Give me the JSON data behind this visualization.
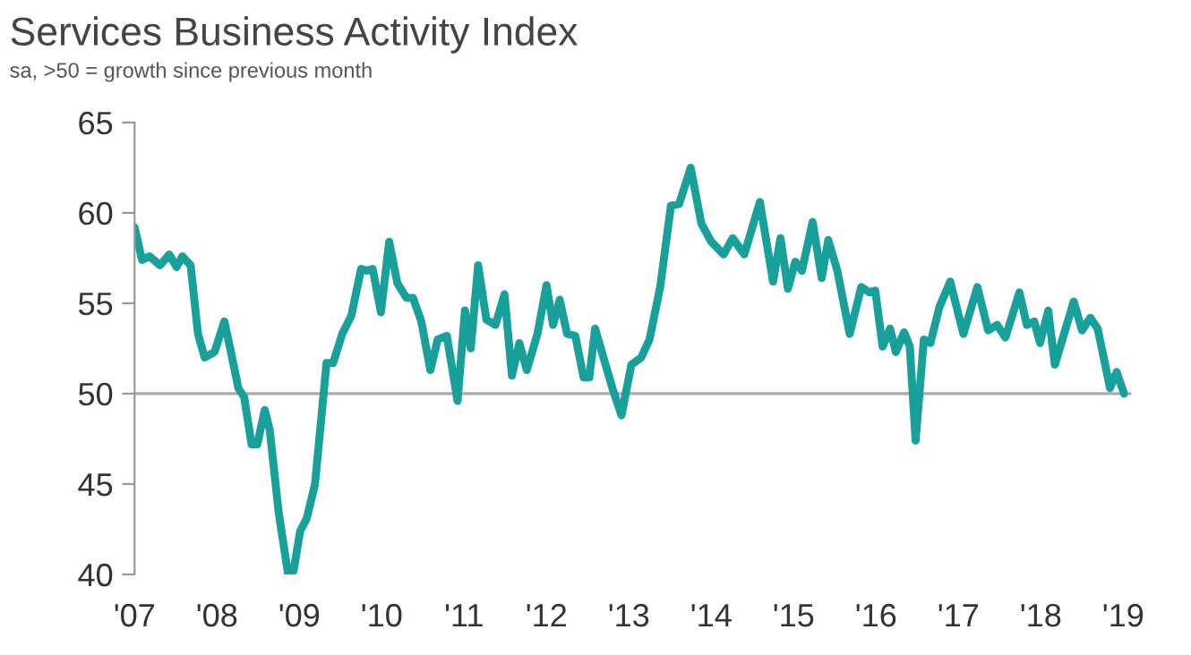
{
  "chart_data": {
    "type": "line",
    "title": "Services Business Activity Index",
    "subtitle": "sa, >50 = growth since previous month",
    "x": [
      2007.0,
      2007.09,
      2007.18,
      2007.31,
      2007.42,
      2007.51,
      2007.58,
      2007.68,
      2007.77,
      2007.85,
      2007.97,
      2008.09,
      2008.17,
      2008.26,
      2008.33,
      2008.42,
      2008.49,
      2008.58,
      2008.64,
      2008.75,
      2008.86,
      2008.93,
      2009.01,
      2009.09,
      2009.19,
      2009.33,
      2009.41,
      2009.52,
      2009.63,
      2009.75,
      2009.82,
      2009.89,
      2009.99,
      2010.09,
      2010.19,
      2010.3,
      2010.38,
      2010.48,
      2010.59,
      2010.68,
      2010.79,
      2010.92,
      2011.01,
      2011.08,
      2011.17,
      2011.27,
      2011.38,
      2011.49,
      2011.58,
      2011.67,
      2011.76,
      2011.89,
      2012.0,
      2012.08,
      2012.16,
      2012.25,
      2012.35,
      2012.45,
      2012.52,
      2012.59,
      2012.71,
      2012.8,
      2012.91,
      2013.03,
      2013.15,
      2013.25,
      2013.38,
      2013.51,
      2013.61,
      2013.75,
      2013.88,
      2014.0,
      2014.15,
      2014.26,
      2014.4,
      2014.59,
      2014.75,
      2014.84,
      2014.93,
      2015.02,
      2015.1,
      2015.23,
      2015.34,
      2015.42,
      2015.53,
      2015.68,
      2015.82,
      2015.92,
      2015.99,
      2016.08,
      2016.17,
      2016.24,
      2016.34,
      2016.41,
      2016.48,
      2016.58,
      2016.66,
      2016.77,
      2016.9,
      2017.06,
      2017.23,
      2017.36,
      2017.47,
      2017.57,
      2017.74,
      2017.83,
      2017.92,
      2017.99,
      2018.09,
      2018.17,
      2018.4,
      2018.5,
      2018.6,
      2018.69,
      2018.84,
      2018.92,
      2019.01
    ],
    "series": [
      {
        "color": "#18a09a",
        "values": [
          59.2,
          57.4,
          57.6,
          57.1,
          57.7,
          57.0,
          57.6,
          57.1,
          53.3,
          52.0,
          52.3,
          54.0,
          52.3,
          50.3,
          49.8,
          47.2,
          47.2,
          49.1,
          48.0,
          43.4,
          40.1,
          40.2,
          42.4,
          43.1,
          45.0,
          51.7,
          51.7,
          53.3,
          54.3,
          56.9,
          56.8,
          56.9,
          54.5,
          58.4,
          56.1,
          55.3,
          55.3,
          54.0,
          51.3,
          53.0,
          53.2,
          49.6,
          54.6,
          52.5,
          57.1,
          54.1,
          53.8,
          55.5,
          51.0,
          52.8,
          51.3,
          53.3,
          56.0,
          53.8,
          55.2,
          53.3,
          53.2,
          50.9,
          50.9,
          53.6,
          51.7,
          50.3,
          48.8,
          51.6,
          52.0,
          53.0,
          55.9,
          60.4,
          60.5,
          62.5,
          59.4,
          58.4,
          57.7,
          58.6,
          57.7,
          60.6,
          56.2,
          58.6,
          55.8,
          57.3,
          56.8,
          59.5,
          56.4,
          58.5,
          56.8,
          53.3,
          55.9,
          55.6,
          55.7,
          52.6,
          53.6,
          52.3,
          53.4,
          52.6,
          47.4,
          53.0,
          52.8,
          54.8,
          56.2,
          53.3,
          55.9,
          53.5,
          53.8,
          53.1,
          55.6,
          53.8,
          54.0,
          52.8,
          54.6,
          51.6,
          55.1,
          53.5,
          54.2,
          53.6,
          50.3,
          51.2,
          50.0
        ]
      }
    ],
    "xlim": [
      2007,
      2019.1
    ],
    "xticks": [
      {
        "value": 2007,
        "label": "'07"
      },
      {
        "value": 2008,
        "label": "'08"
      },
      {
        "value": 2009,
        "label": "'09"
      },
      {
        "value": 2010,
        "label": "'10"
      },
      {
        "value": 2011,
        "label": "'11"
      },
      {
        "value": 2012,
        "label": "'12"
      },
      {
        "value": 2013,
        "label": "'13"
      },
      {
        "value": 2014,
        "label": "'14"
      },
      {
        "value": 2015,
        "label": "'15"
      },
      {
        "value": 2016,
        "label": "'16"
      },
      {
        "value": 2017,
        "label": "'17"
      },
      {
        "value": 2018,
        "label": "'18"
      },
      {
        "value": 2019,
        "label": "'19"
      }
    ],
    "ylim": [
      40,
      65
    ],
    "yticks": [
      40,
      45,
      50,
      55,
      60,
      65
    ],
    "ref_lines": [
      {
        "axis": "y",
        "value": 50,
        "color": "#aaaaaa"
      }
    ],
    "grid": false,
    "legend": false,
    "marker": "none",
    "line_style": "solid"
  }
}
